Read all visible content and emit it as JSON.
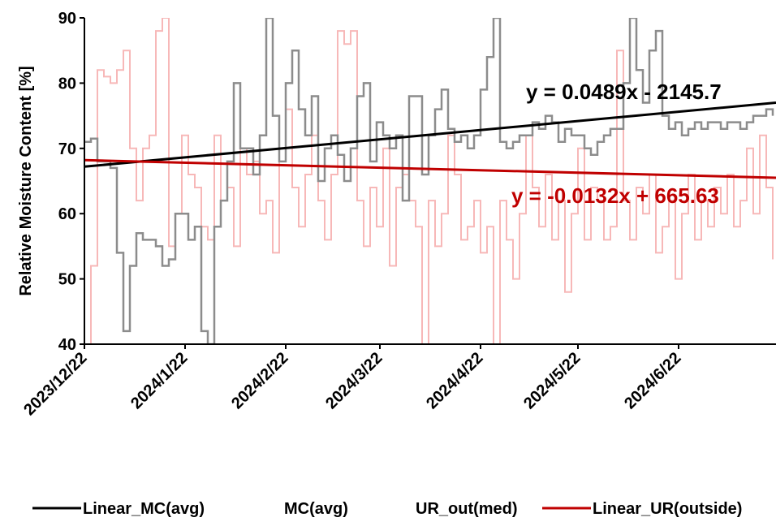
{
  "chart_data": {
    "type": "line",
    "title": "",
    "xlabel": "",
    "ylabel": "Relative Moisture Content [%]",
    "ylim": [
      40,
      90
    ],
    "xlim": [
      "2023/12/22",
      "2024/7/22"
    ],
    "y_ticks": [
      "40",
      "50",
      "60",
      "70",
      "80",
      "90"
    ],
    "x_ticks": [
      "2023/12/22",
      "2024/1/22",
      "2024/2/22",
      "2024/3/22",
      "2024/4/22",
      "2024/5/22",
      "2024/6/22"
    ],
    "grid": false,
    "legend_position": "bottom",
    "colors": {
      "mc_avg": "#8c8c8c",
      "ur_out": "#f7b8b8",
      "linear_mc": "#000000",
      "linear_ur": "#c00000"
    },
    "annotations": [
      {
        "text": "y = 0.0489x - 2145.7",
        "color": "#000000"
      },
      {
        "text": "y = -0.0132x + 665.63",
        "color": "#c00000"
      }
    ],
    "legend": [
      "Linear_MC(avg)",
      "MC(avg)",
      "UR_out(med)",
      "Linear_UR(outside)"
    ],
    "series": [
      {
        "name": "MC(avg)",
        "x": [
          "2023/12/22",
          "2023/12/24",
          "2023/12/26",
          "2023/12/28",
          "2023/12/30",
          "2024/1/1",
          "2024/1/3",
          "2024/1/5",
          "2024/1/7",
          "2024/1/9",
          "2024/1/11",
          "2024/1/13",
          "2024/1/15",
          "2024/1/17",
          "2024/1/19",
          "2024/1/21",
          "2024/1/23",
          "2024/1/25",
          "2024/1/27",
          "2024/1/29",
          "2024/1/31",
          "2024/2/2",
          "2024/2/4",
          "2024/2/6",
          "2024/2/8",
          "2024/2/10",
          "2024/2/12",
          "2024/2/14",
          "2024/2/16",
          "2024/2/18",
          "2024/2/20",
          "2024/2/22",
          "2024/2/24",
          "2024/2/26",
          "2024/2/28",
          "2024/3/1",
          "2024/3/3",
          "2024/3/5",
          "2024/3/7",
          "2024/3/9",
          "2024/3/11",
          "2024/3/13",
          "2024/3/15",
          "2024/3/17",
          "2024/3/19",
          "2024/3/21",
          "2024/3/23",
          "2024/3/25",
          "2024/3/27",
          "2024/3/29",
          "2024/3/31",
          "2024/4/2",
          "2024/4/4",
          "2024/4/6",
          "2024/4/8",
          "2024/4/10",
          "2024/4/12",
          "2024/4/14",
          "2024/4/16",
          "2024/4/18",
          "2024/4/20",
          "2024/4/22",
          "2024/4/24",
          "2024/4/26",
          "2024/4/28",
          "2024/4/30",
          "2024/5/2",
          "2024/5/4",
          "2024/5/6",
          "2024/5/8",
          "2024/5/10",
          "2024/5/12",
          "2024/5/14",
          "2024/5/16",
          "2024/5/18",
          "2024/5/20",
          "2024/5/22",
          "2024/5/24",
          "2024/5/26",
          "2024/5/28",
          "2024/5/30",
          "2024/6/1",
          "2024/6/3",
          "2024/6/5",
          "2024/6/7",
          "2024/6/9",
          "2024/6/11",
          "2024/6/13",
          "2024/6/15",
          "2024/6/17",
          "2024/6/19",
          "2024/6/21",
          "2024/6/23",
          "2024/6/25",
          "2024/6/27",
          "2024/6/29",
          "2024/7/1",
          "2024/7/3",
          "2024/7/5",
          "2024/7/7",
          "2024/7/9",
          "2024/7/11",
          "2024/7/13",
          "2024/7/15",
          "2024/7/17",
          "2024/7/19",
          "2024/7/21"
        ],
        "y": [
          71,
          71.5,
          68,
          68,
          67,
          54,
          42,
          52,
          57,
          56,
          56,
          55,
          52,
          53,
          60,
          60,
          56,
          58,
          42,
          40,
          58,
          62,
          68,
          80,
          70,
          70,
          66,
          72,
          90,
          75,
          68,
          80,
          85,
          76,
          72,
          78,
          65,
          70,
          72,
          69,
          65,
          70,
          78,
          80,
          68,
          74,
          72,
          70,
          72,
          62,
          78,
          78,
          66,
          72,
          76,
          79,
          73,
          71,
          72,
          70,
          72,
          79,
          84,
          90,
          71,
          70,
          71,
          72,
          72,
          74,
          73,
          75,
          74,
          71,
          73,
          72,
          72,
          70,
          69,
          71,
          72,
          73,
          73,
          80,
          90,
          82,
          77,
          85,
          88,
          75,
          73,
          74,
          72,
          73,
          74,
          73,
          74,
          74,
          73,
          74,
          74,
          73,
          74,
          75,
          75,
          76,
          75
        ]
      },
      {
        "name": "UR_out(med)",
        "x": [
          "2023/12/22",
          "2023/12/24",
          "2023/12/26",
          "2023/12/28",
          "2023/12/30",
          "2024/1/1",
          "2024/1/3",
          "2024/1/5",
          "2024/1/7",
          "2024/1/9",
          "2024/1/11",
          "2024/1/13",
          "2024/1/15",
          "2024/1/17",
          "2024/1/19",
          "2024/1/21",
          "2024/1/23",
          "2024/1/25",
          "2024/1/27",
          "2024/1/29",
          "2024/1/31",
          "2024/2/2",
          "2024/2/4",
          "2024/2/6",
          "2024/2/8",
          "2024/2/10",
          "2024/2/12",
          "2024/2/14",
          "2024/2/16",
          "2024/2/18",
          "2024/2/20",
          "2024/2/22",
          "2024/2/24",
          "2024/2/26",
          "2024/2/28",
          "2024/3/1",
          "2024/3/3",
          "2024/3/5",
          "2024/3/7",
          "2024/3/9",
          "2024/3/11",
          "2024/3/13",
          "2024/3/15",
          "2024/3/17",
          "2024/3/19",
          "2024/3/21",
          "2024/3/23",
          "2024/3/25",
          "2024/3/27",
          "2024/3/29",
          "2024/3/31",
          "2024/4/2",
          "2024/4/4",
          "2024/4/6",
          "2024/4/8",
          "2024/4/10",
          "2024/4/12",
          "2024/4/14",
          "2024/4/16",
          "2024/4/18",
          "2024/4/20",
          "2024/4/22",
          "2024/4/24",
          "2024/4/26",
          "2024/4/28",
          "2024/4/30",
          "2024/5/2",
          "2024/5/4",
          "2024/5/6",
          "2024/5/8",
          "2024/5/10",
          "2024/5/12",
          "2024/5/14",
          "2024/5/16",
          "2024/5/18",
          "2024/5/20",
          "2024/5/22",
          "2024/5/24",
          "2024/5/26",
          "2024/5/28",
          "2024/5/30",
          "2024/6/1",
          "2024/6/3",
          "2024/6/5",
          "2024/6/7",
          "2024/6/9",
          "2024/6/11",
          "2024/6/13",
          "2024/6/15",
          "2024/6/17",
          "2024/6/19",
          "2024/6/21",
          "2024/6/23",
          "2024/6/25",
          "2024/6/27",
          "2024/6/29",
          "2024/7/1",
          "2024/7/3",
          "2024/7/5",
          "2024/7/7",
          "2024/7/9",
          "2024/7/11",
          "2024/7/13",
          "2024/7/15",
          "2024/7/17",
          "2024/7/19",
          "2024/7/21"
        ],
        "y": [
          40,
          52,
          82,
          81,
          80,
          82,
          85,
          70,
          62,
          70,
          72,
          88,
          90,
          55,
          60,
          72,
          66,
          64,
          58,
          56,
          72,
          62,
          64,
          55,
          70,
          66,
          68,
          60,
          62,
          54,
          70,
          76,
          64,
          58,
          66,
          72,
          62,
          56,
          66,
          88,
          86,
          88,
          62,
          55,
          64,
          58,
          70,
          52,
          64,
          66,
          62,
          58,
          38,
          62,
          55,
          60,
          72,
          66,
          56,
          58,
          62,
          54,
          58,
          40,
          62,
          56,
          50,
          60,
          72,
          64,
          58,
          66,
          56,
          62,
          48,
          60,
          70,
          56,
          64,
          62,
          56,
          58,
          85,
          62,
          56,
          64,
          60,
          66,
          54,
          58,
          62,
          50,
          60,
          66,
          56,
          62,
          58,
          64,
          60,
          66,
          58,
          62,
          70,
          60,
          72,
          64,
          53
        ]
      }
    ],
    "trendlines": [
      {
        "name": "Linear_MC(avg)",
        "start": [
          "2023/12/22",
          67.2
        ],
        "end": [
          "2024/7/22",
          77.0
        ]
      },
      {
        "name": "Linear_UR(outside)",
        "start": [
          "2023/12/22",
          68.2
        ],
        "end": [
          "2024/7/22",
          65.5
        ]
      }
    ]
  }
}
